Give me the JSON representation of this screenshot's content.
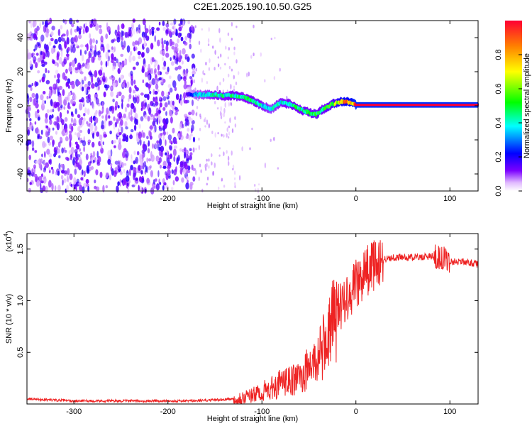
{
  "title": "C2E1.2025.190.10.50.G25",
  "chart_data": [
    {
      "type": "heatmap",
      "title": "C2E1.2025.190.10.50.G25",
      "xlabel": "Height of straight line (km)",
      "ylabel": "Frequency (Hz)",
      "xlim": [
        -350,
        130
      ],
      "ylim": [
        -50,
        50
      ],
      "x_ticks": [
        -300,
        -200,
        -100,
        0,
        100
      ],
      "y_ticks": [
        -40,
        -20,
        0,
        20,
        40
      ],
      "colorbar": {
        "label": "Normalized spectral amplitude",
        "range": [
          0,
          1
        ],
        "ticks": [
          0.0,
          0.2,
          0.4,
          0.6,
          0.8
        ],
        "colormap": [
          "#ffffff",
          "#7b00ff",
          "#0000ff",
          "#00ffff",
          "#00ff00",
          "#ffff00",
          "#ff0000"
        ]
      },
      "noise_region_x": [
        -350,
        -172
      ],
      "signal_track": [
        {
          "x": -180,
          "freq": 7,
          "amp": 0.15
        },
        {
          "x": -170,
          "freq": 6.5,
          "amp": 0.35
        },
        {
          "x": -160,
          "freq": 6.5,
          "amp": 0.4
        },
        {
          "x": -150,
          "freq": 6.5,
          "amp": 0.45
        },
        {
          "x": -140,
          "freq": 6,
          "amp": 0.45
        },
        {
          "x": -130,
          "freq": 6,
          "amp": 0.5
        },
        {
          "x": -120,
          "freq": 5,
          "amp": 0.45
        },
        {
          "x": -110,
          "freq": 3,
          "amp": 0.5
        },
        {
          "x": -100,
          "freq": 0,
          "amp": 0.45
        },
        {
          "x": -90,
          "freq": -2,
          "amp": 0.4
        },
        {
          "x": -80,
          "freq": 2,
          "amp": 0.45
        },
        {
          "x": -70,
          "freq": 1,
          "amp": 0.5
        },
        {
          "x": -60,
          "freq": -2,
          "amp": 0.5
        },
        {
          "x": -50,
          "freq": -4,
          "amp": 0.5
        },
        {
          "x": -42,
          "freq": -5,
          "amp": 0.55
        },
        {
          "x": -35,
          "freq": -2,
          "amp": 0.5
        },
        {
          "x": -25,
          "freq": 1,
          "amp": 0.6
        },
        {
          "x": -15,
          "freq": 2.5,
          "amp": 0.85
        },
        {
          "x": -5,
          "freq": 2,
          "amp": 0.9
        },
        {
          "x": 0,
          "freq": 0.5,
          "amp": 1.0
        },
        {
          "x": 20,
          "freq": 0.5,
          "amp": 1.0
        },
        {
          "x": 50,
          "freq": 0.5,
          "amp": 1.0
        },
        {
          "x": 80,
          "freq": 0.5,
          "amp": 1.0
        },
        {
          "x": 110,
          "freq": 0.5,
          "amp": 1.0
        },
        {
          "x": 130,
          "freq": 0.5,
          "amp": 1.0
        }
      ]
    },
    {
      "type": "line",
      "xlabel": "Height of straight line (km)",
      "ylabel": "SNR (10 * v/v)",
      "y_multiplier_label": "(x10",
      "y_multiplier_exp": "4",
      "y_multiplier_close": ")",
      "xlim": [
        -350,
        130
      ],
      "ylim": [
        0,
        1.65
      ],
      "x_ticks": [
        -300,
        -200,
        -100,
        0,
        100
      ],
      "y_ticks": [
        0.5,
        1.0,
        1.5
      ],
      "y_tick_labels": [
        "0.5",
        "1.0",
        "1.5"
      ],
      "color": "#ee2222",
      "series": [
        {
          "x": [
            -350,
            -300,
            -250,
            -200,
            -170,
            -150,
            -130,
            -110,
            -100,
            -90,
            -80,
            -70,
            -60,
            -50,
            -40,
            -30,
            -20,
            -10,
            0,
            10,
            20,
            30,
            40,
            60,
            80,
            90,
            100,
            110,
            120,
            130
          ],
          "values": [
            0.05,
            0.03,
            0.03,
            0.03,
            0.03,
            0.04,
            0.05,
            0.08,
            0.12,
            0.15,
            0.2,
            0.22,
            0.25,
            0.35,
            0.45,
            0.65,
            0.9,
            1.05,
            1.15,
            1.28,
            1.35,
            1.4,
            1.42,
            1.42,
            1.43,
            1.42,
            1.38,
            1.38,
            1.37,
            1.35
          ]
        }
      ]
    }
  ]
}
